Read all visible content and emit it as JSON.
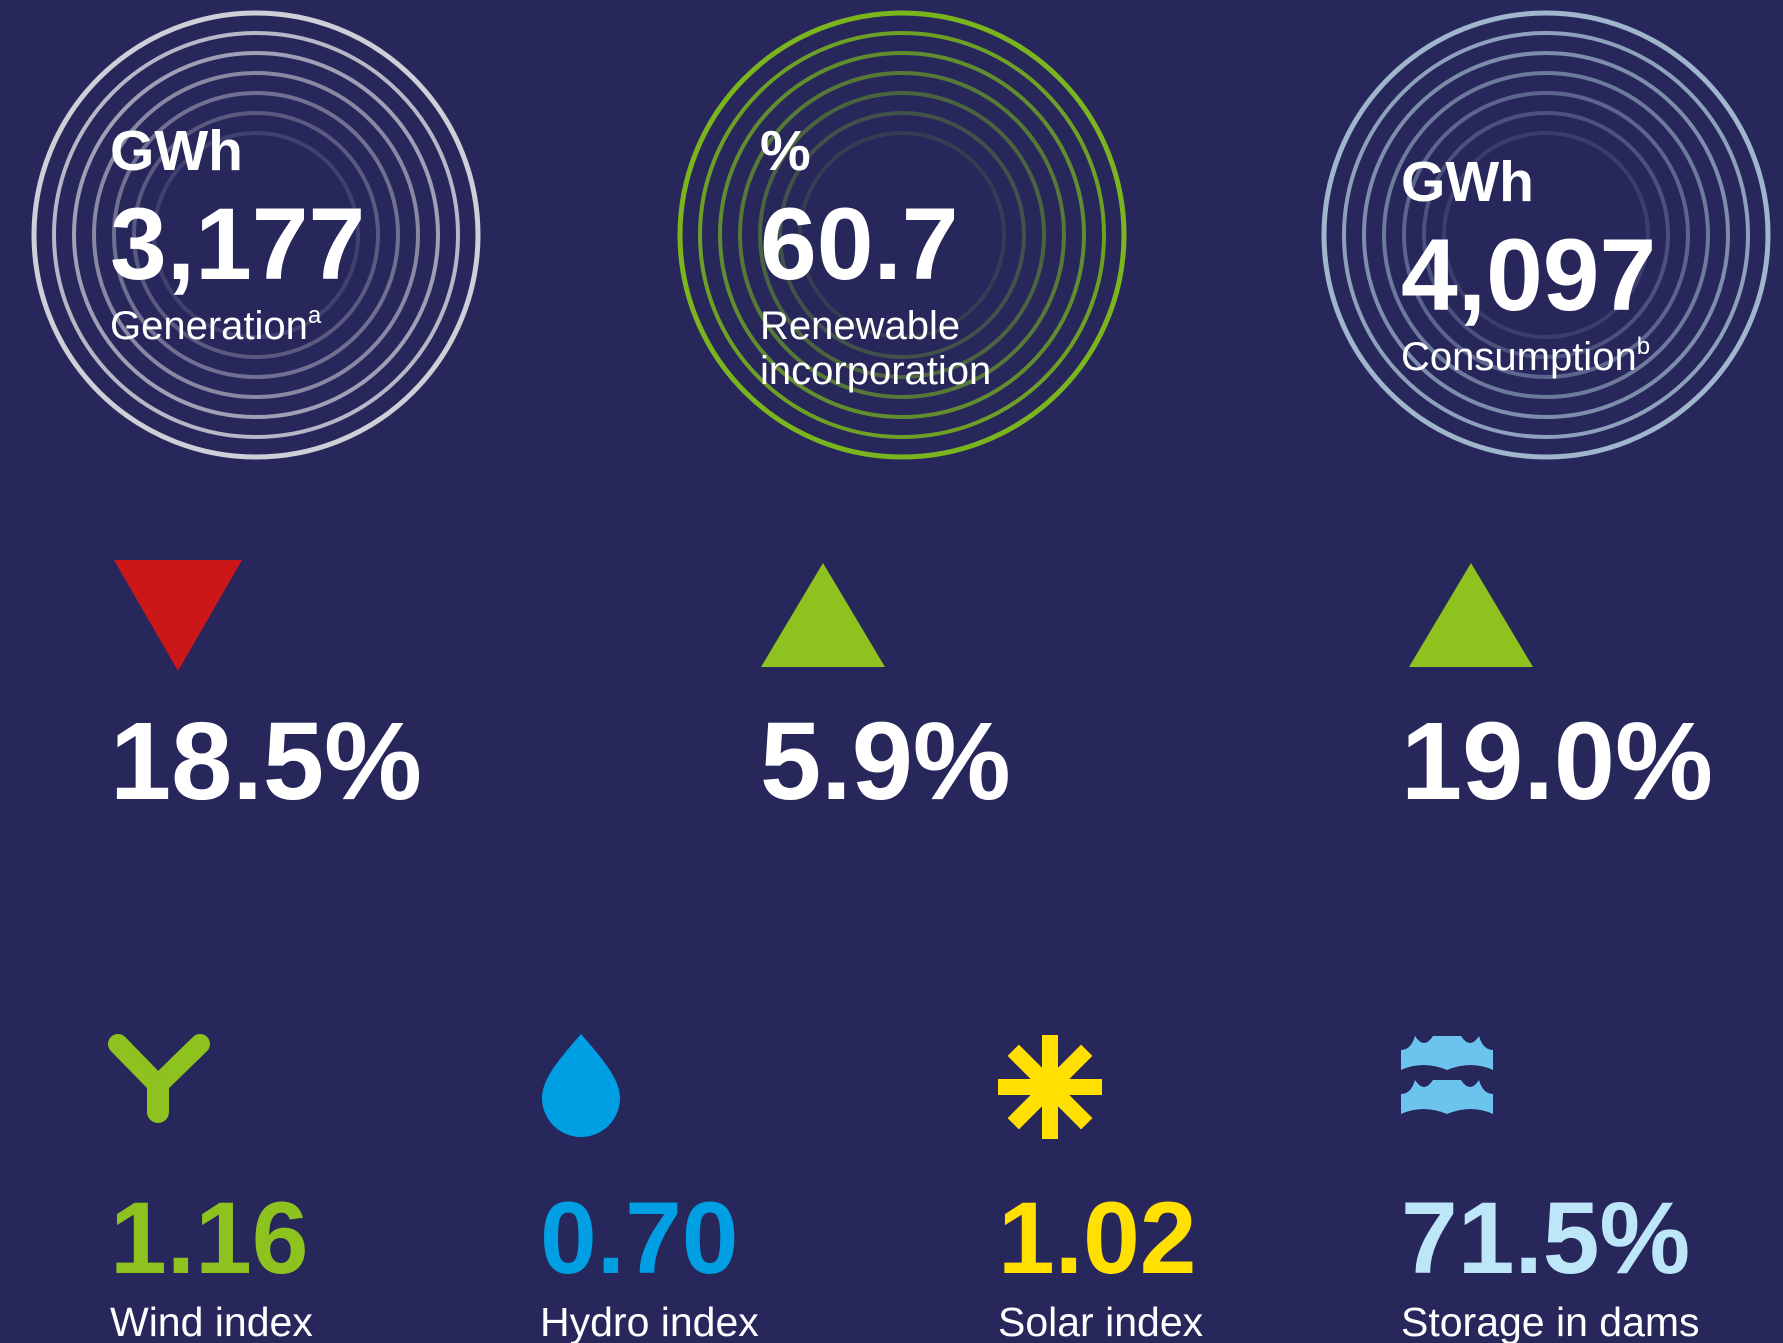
{
  "kpis": [
    {
      "unit": "GWh",
      "value": "3,177",
      "label": [
        "Generation"
      ],
      "note": "a",
      "ring_color": "#cfcfd8"
    },
    {
      "unit": "%",
      "value": "60.7",
      "label": [
        "Renewable",
        "incorporation"
      ],
      "ring_color": "#7ab51d"
    },
    {
      "unit": "GWh",
      "value": "4,097",
      "label": [
        "Consumption"
      ],
      "note": "b",
      "ring_color": "#9fb6cc"
    }
  ],
  "changes": [
    {
      "value": "18.5%",
      "direction": "down",
      "color": "#cc1719"
    },
    {
      "value": "5.9%",
      "direction": "up",
      "color": "#8dc21f"
    },
    {
      "value": "19.0%",
      "direction": "up",
      "color": "#8dc21f"
    }
  ],
  "indices": [
    {
      "value": "1.16",
      "label": "Wind index",
      "color": "#8dc21f",
      "icon": "wind"
    },
    {
      "value": "0.70",
      "label": "Hydro index",
      "color": "#009fe3",
      "icon": "hydro"
    },
    {
      "value": "1.02",
      "label": "Solar index",
      "color": "#ffe000",
      "icon": "solar"
    },
    {
      "value": "71.5%",
      "label": "Storage in dams",
      "color": "#bde6f8",
      "icon": "storage",
      "icon_color": "#6cc4ee"
    }
  ]
}
